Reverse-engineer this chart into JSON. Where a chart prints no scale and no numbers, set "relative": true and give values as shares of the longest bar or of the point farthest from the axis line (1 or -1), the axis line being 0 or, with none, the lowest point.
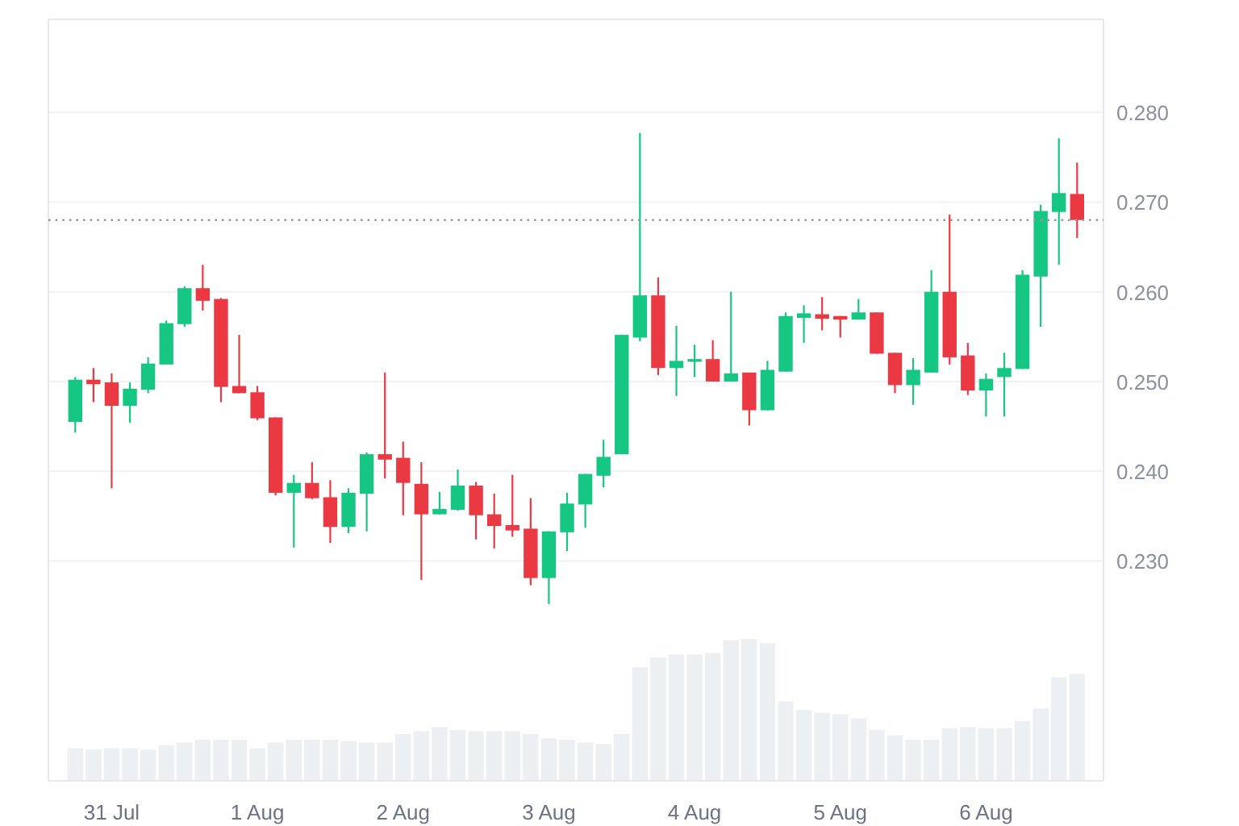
{
  "chart_data": [
    {
      "type": "candlestick",
      "categories": [
        null,
        null,
        "31 Jul",
        null,
        null,
        null,
        null,
        null,
        null,
        null,
        "1 Aug",
        null,
        null,
        null,
        null,
        null,
        null,
        null,
        "2 Aug",
        null,
        null,
        null,
        null,
        null,
        null,
        null,
        "3 Aug",
        null,
        null,
        null,
        null,
        null,
        null,
        null,
        "4 Aug",
        null,
        null,
        null,
        null,
        null,
        null,
        null,
        "5 Aug",
        null,
        null,
        null,
        null,
        null,
        null,
        null,
        "6 Aug",
        null,
        null,
        null,
        null,
        null
      ],
      "ohlc": [
        [
          0.2455,
          0.2505,
          0.2443,
          0.2502
        ],
        [
          0.2502,
          0.2515,
          0.2477,
          0.2497
        ],
        [
          0.2499,
          0.2509,
          0.2381,
          0.2473
        ],
        [
          0.2473,
          0.2499,
          0.2454,
          0.2492
        ],
        [
          0.2491,
          0.2527,
          0.2487,
          0.252
        ],
        [
          0.2519,
          0.2568,
          0.2519,
          0.2565
        ],
        [
          0.2564,
          0.2606,
          0.2561,
          0.2604
        ],
        [
          0.2604,
          0.263,
          0.2579,
          0.259
        ],
        [
          0.2592,
          0.2593,
          0.2477,
          0.2494
        ],
        [
          0.2495,
          0.2552,
          0.2487,
          0.2487
        ],
        [
          0.2488,
          0.2495,
          0.2457,
          0.2459
        ],
        [
          0.246,
          0.246,
          0.2373,
          0.2376
        ],
        [
          0.2376,
          0.2396,
          0.2315,
          0.2387
        ],
        [
          0.2387,
          0.241,
          0.2369,
          0.237
        ],
        [
          0.2371,
          0.239,
          0.232,
          0.2338
        ],
        [
          0.2338,
          0.2381,
          0.2331,
          0.2376
        ],
        [
          0.2375,
          0.2421,
          0.2333,
          0.2419
        ],
        [
          0.2419,
          0.251,
          0.2392,
          0.2413
        ],
        [
          0.2415,
          0.2433,
          0.2351,
          0.2387
        ],
        [
          0.2386,
          0.241,
          0.2279,
          0.2352
        ],
        [
          0.2352,
          0.2377,
          0.2352,
          0.2358
        ],
        [
          0.2357,
          0.2402,
          0.2356,
          0.2384
        ],
        [
          0.2384,
          0.2388,
          0.2324,
          0.2351
        ],
        [
          0.2352,
          0.2375,
          0.2314,
          0.2339
        ],
        [
          0.234,
          0.2396,
          0.2327,
          0.2334
        ],
        [
          0.2336,
          0.237,
          0.2273,
          0.2281
        ],
        [
          0.2281,
          0.2333,
          0.2252,
          0.2333
        ],
        [
          0.2332,
          0.2376,
          0.2311,
          0.2364
        ],
        [
          0.2363,
          0.2397,
          0.2337,
          0.2397
        ],
        [
          0.2395,
          0.2435,
          0.2382,
          0.2416
        ],
        [
          0.2419,
          0.2552,
          0.2419,
          0.2552
        ],
        [
          0.2549,
          0.2777,
          0.2545,
          0.2596
        ],
        [
          0.2596,
          0.2616,
          0.2507,
          0.2515
        ],
        [
          0.2515,
          0.2562,
          0.2484,
          0.2523
        ],
        [
          0.2522,
          0.2541,
          0.2505,
          0.2525
        ],
        [
          0.2525,
          0.2546,
          0.25,
          0.25
        ],
        [
          0.25,
          0.26,
          0.25,
          0.2509
        ],
        [
          0.251,
          0.251,
          0.2451,
          0.2468
        ],
        [
          0.2468,
          0.2523,
          0.2468,
          0.2513
        ],
        [
          0.2511,
          0.2577,
          0.2511,
          0.2573
        ],
        [
          0.2571,
          0.2585,
          0.2543,
          0.2576
        ],
        [
          0.2575,
          0.2594,
          0.2557,
          0.257
        ],
        [
          0.2573,
          0.2573,
          0.2549,
          0.2569
        ],
        [
          0.2569,
          0.2592,
          0.2569,
          0.2577
        ],
        [
          0.2577,
          0.2577,
          0.2531,
          0.2531
        ],
        [
          0.2532,
          0.2532,
          0.2487,
          0.2496
        ],
        [
          0.2496,
          0.2526,
          0.2474,
          0.2513
        ],
        [
          0.251,
          0.2624,
          0.251,
          0.26
        ],
        [
          0.26,
          0.2686,
          0.2519,
          0.2527
        ],
        [
          0.2529,
          0.2543,
          0.2485,
          0.249
        ],
        [
          0.249,
          0.2509,
          0.2461,
          0.2503
        ],
        [
          0.2505,
          0.2532,
          0.2461,
          0.2515
        ],
        [
          0.2514,
          0.2624,
          0.2514,
          0.2619
        ],
        [
          0.2617,
          0.2697,
          0.2561,
          0.269
        ],
        [
          0.2689,
          0.2771,
          0.263,
          0.271
        ],
        [
          0.2709,
          0.2744,
          0.266,
          0.268
        ]
      ],
      "colors": [
        "#16c784",
        "#ea3943",
        "#ea3943",
        "#16c784",
        "#16c784",
        "#16c784",
        "#16c784",
        "#ea3943",
        "#ea3943",
        "#ea3943",
        "#ea3943",
        "#ea3943",
        "#16c784",
        "#ea3943",
        "#ea3943",
        "#16c784",
        "#16c784",
        "#ea3943",
        "#ea3943",
        "#ea3943",
        "#16c784",
        "#16c784",
        "#ea3943",
        "#ea3943",
        "#ea3943",
        "#ea3943",
        "#16c784",
        "#16c784",
        "#16c784",
        "#16c784",
        "#16c784",
        "#16c784",
        "#ea3943",
        "#16c784",
        "#16c784",
        "#ea3943",
        "#16c784",
        "#ea3943",
        "#16c784",
        "#16c784",
        "#16c784",
        "#ea3943",
        "#ea3943",
        "#16c784",
        "#ea3943",
        "#ea3943",
        "#16c784",
        "#16c784",
        "#ea3943",
        "#ea3943",
        "#16c784",
        "#16c784",
        "#16c784",
        "#16c784",
        "#16c784",
        "#ea3943"
      ],
      "ylim": [
        0.2055,
        0.29
      ],
      "yticks": [
        {
          "value": 0.23,
          "label": "0.230"
        },
        {
          "value": 0.24,
          "label": "0.240"
        },
        {
          "value": 0.25,
          "label": "0.250"
        },
        {
          "value": 0.26,
          "label": "0.260"
        },
        {
          "value": 0.27,
          "label": "0.270"
        },
        {
          "value": 0.28,
          "label": "0.280"
        }
      ],
      "grid": "y",
      "ref_lines": [
        {
          "axis": "y",
          "value": 0.268,
          "color": "#9c9a9a",
          "line_style": "dotted"
        }
      ]
    },
    {
      "type": "bar",
      "relative": true,
      "color": "#edf0f3",
      "categories": [
        null,
        null,
        null,
        null,
        null,
        null,
        null,
        null,
        null,
        null,
        null,
        null,
        null,
        null,
        null,
        null,
        null,
        null,
        null,
        null,
        null,
        null,
        null,
        null,
        null,
        null,
        null,
        null,
        null,
        null,
        null,
        null,
        null,
        null,
        null,
        null,
        null,
        null,
        null,
        null,
        null,
        null,
        null,
        null,
        null,
        null,
        null,
        null,
        null,
        null,
        null,
        null,
        null,
        null,
        null,
        null
      ],
      "values": [
        0.23,
        0.22,
        0.23,
        0.23,
        0.22,
        0.25,
        0.27,
        0.29,
        0.29,
        0.29,
        0.23,
        0.27,
        0.29,
        0.29,
        0.29,
        0.28,
        0.27,
        0.27,
        0.33,
        0.35,
        0.38,
        0.36,
        0.35,
        0.35,
        0.35,
        0.33,
        0.3,
        0.29,
        0.27,
        0.26,
        0.33,
        0.8,
        0.87,
        0.89,
        0.89,
        0.9,
        0.99,
        1,
        0.97,
        0.56,
        0.5,
        0.48,
        0.47,
        0.44,
        0.36,
        0.32,
        0.29,
        0.29,
        0.37,
        0.38,
        0.37,
        0.37,
        0.42,
        0.51,
        0.73,
        0.75
      ]
    }
  ]
}
